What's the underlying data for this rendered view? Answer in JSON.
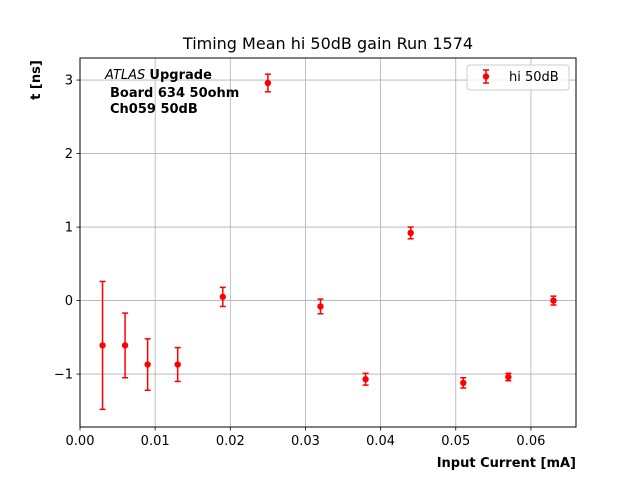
{
  "chart_data": {
    "type": "scatter",
    "title": "Timing Mean hi 50dB gain Run 1574",
    "xlabel": "Input Current [mA]",
    "ylabel": "t [ns]",
    "xlim": [
      0.0,
      0.066
    ],
    "ylim": [
      -1.72,
      3.3
    ],
    "xticks": [
      0.0,
      0.01,
      0.02,
      0.03,
      0.04,
      0.05,
      0.06
    ],
    "xtick_labels": [
      "0.00",
      "0.01",
      "0.02",
      "0.03",
      "0.04",
      "0.05",
      "0.06"
    ],
    "yticks": [
      -1,
      0,
      1,
      2,
      3
    ],
    "ytick_labels": [
      "−1",
      "0",
      "1",
      "2",
      "3"
    ],
    "grid": true,
    "legend_position": "top-right",
    "annotation": {
      "atlas": "ATLAS",
      "upgrade": "Upgrade",
      "line2": "Board 634 50ohm",
      "line3": "Ch059 50dB"
    },
    "series": [
      {
        "name": "hi 50dB",
        "color": "#ff0000",
        "x": [
          0.003,
          0.006,
          0.009,
          0.013,
          0.019,
          0.025,
          0.032,
          0.038,
          0.044,
          0.051,
          0.057,
          0.063
        ],
        "y": [
          -0.61,
          -0.61,
          -0.87,
          -0.87,
          0.05,
          2.96,
          -0.08,
          -1.07,
          0.92,
          -1.12,
          -1.04,
          0.0
        ],
        "yerr": [
          0.87,
          0.44,
          0.35,
          0.23,
          0.13,
          0.12,
          0.1,
          0.08,
          0.08,
          0.07,
          0.05,
          0.06
        ]
      }
    ]
  }
}
